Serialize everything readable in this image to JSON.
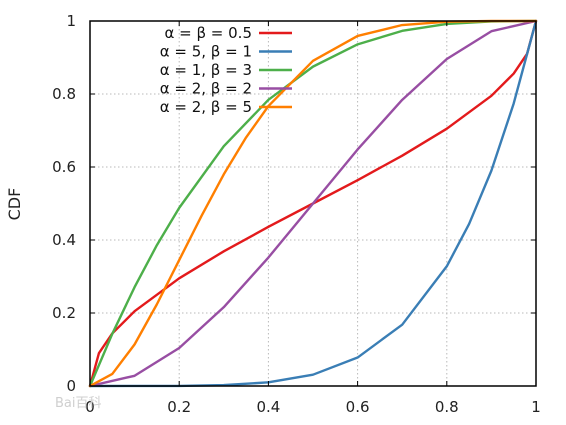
{
  "chart_data": {
    "type": "line",
    "title": "",
    "xlabel": "",
    "ylabel": "CDF",
    "xlim": [
      0,
      1
    ],
    "ylim": [
      0,
      1
    ],
    "xticks": [
      0,
      0.2,
      0.4,
      0.6,
      0.8,
      1
    ],
    "yticks": [
      0,
      0.2,
      0.4,
      0.6,
      0.8,
      1
    ],
    "xtick_labels": [
      "0",
      "0.2",
      "0.4",
      "0.6",
      "0.8",
      "1"
    ],
    "ytick_labels": [
      "0",
      "0.2",
      "0.4",
      "0.6",
      "0.8",
      "1"
    ],
    "grid": true,
    "legend_position": "top-left",
    "series": [
      {
        "name": "α = β = 0.5",
        "color": "#e31a1c",
        "x": [
          0,
          0.02,
          0.05,
          0.1,
          0.2,
          0.3,
          0.4,
          0.5,
          0.6,
          0.7,
          0.8,
          0.9,
          0.95,
          0.98,
          1
        ],
        "y": [
          0,
          0.09,
          0.144,
          0.205,
          0.295,
          0.369,
          0.436,
          0.5,
          0.564,
          0.631,
          0.705,
          0.795,
          0.856,
          0.91,
          1
        ]
      },
      {
        "name": "α = 5, β = 1",
        "color": "#3a7eb5",
        "x": [
          0,
          0.2,
          0.3,
          0.4,
          0.5,
          0.6,
          0.7,
          0.8,
          0.85,
          0.9,
          0.95,
          1
        ],
        "y": [
          0,
          0.0003,
          0.0024,
          0.01,
          0.031,
          0.078,
          0.168,
          0.328,
          0.444,
          0.59,
          0.774,
          1
        ]
      },
      {
        "name": "α = 1, β = 3",
        "color": "#4daf4a",
        "x": [
          0,
          0.05,
          0.1,
          0.15,
          0.2,
          0.3,
          0.4,
          0.5,
          0.6,
          0.7,
          0.8,
          0.9,
          1
        ],
        "y": [
          0,
          0.143,
          0.271,
          0.386,
          0.488,
          0.657,
          0.784,
          0.875,
          0.936,
          0.973,
          0.992,
          0.999,
          1
        ]
      },
      {
        "name": "α = 2, β = 2",
        "color": "#984ea3",
        "x": [
          0,
          0.1,
          0.2,
          0.3,
          0.4,
          0.5,
          0.6,
          0.7,
          0.8,
          0.9,
          1
        ],
        "y": [
          0,
          0.028,
          0.104,
          0.216,
          0.352,
          0.5,
          0.648,
          0.784,
          0.896,
          0.972,
          1
        ]
      },
      {
        "name": "α = 2, β = 5",
        "color": "#ff7f00",
        "x": [
          0,
          0.05,
          0.1,
          0.15,
          0.2,
          0.25,
          0.3,
          0.35,
          0.4,
          0.5,
          0.6,
          0.7,
          0.8,
          0.9,
          1
        ],
        "y": [
          0,
          0.033,
          0.114,
          0.224,
          0.345,
          0.466,
          0.58,
          0.681,
          0.767,
          0.891,
          0.959,
          0.989,
          0.998,
          1.0,
          1
        ]
      }
    ]
  },
  "watermark": "Bai百科"
}
